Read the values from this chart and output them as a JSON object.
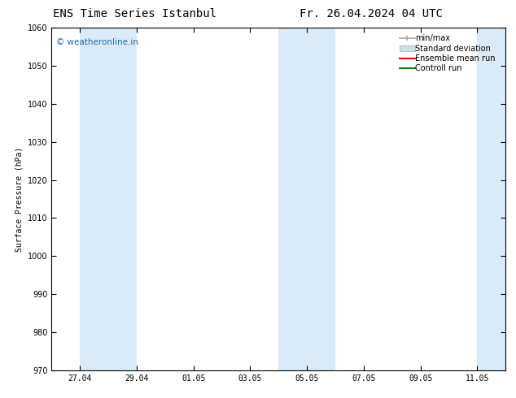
{
  "title_left": "ENS Time Series Istanbul",
  "title_right": "Fr. 26.04.2024 04 UTC",
  "ylabel": "Surface Pressure (hPa)",
  "ylim": [
    970,
    1060
  ],
  "yticks": [
    970,
    980,
    990,
    1000,
    1010,
    1020,
    1030,
    1040,
    1050,
    1060
  ],
  "xtick_labels": [
    "27.04",
    "29.04",
    "01.05",
    "03.05",
    "05.05",
    "07.05",
    "09.05",
    "11.05"
  ],
  "background_color": "#ffffff",
  "plot_bg_color": "#ffffff",
  "shaded_band_color": "#daeaf7",
  "shaded_bands": [
    {
      "start_day": 1,
      "end_day": 3
    },
    {
      "start_day": 8,
      "end_day": 10
    },
    {
      "start_day": 15,
      "end_day": 16
    }
  ],
  "watermark_text": "© weatheronline.in",
  "watermark_color": "#1a6eb5",
  "watermark_fontsize": 7.5,
  "legend_entries": [
    {
      "label": "min/max",
      "color": "#aaaaaa",
      "type": "errorbar"
    },
    {
      "label": "Standard deviation",
      "color": "#c8dff0",
      "type": "bar"
    },
    {
      "label": "Ensemble mean run",
      "color": "#ff0000",
      "type": "line"
    },
    {
      "label": "Controll run",
      "color": "#008000",
      "type": "line"
    }
  ],
  "title_fontsize": 10,
  "axis_fontsize": 7,
  "tick_fontsize": 7,
  "legend_fontsize": 7
}
